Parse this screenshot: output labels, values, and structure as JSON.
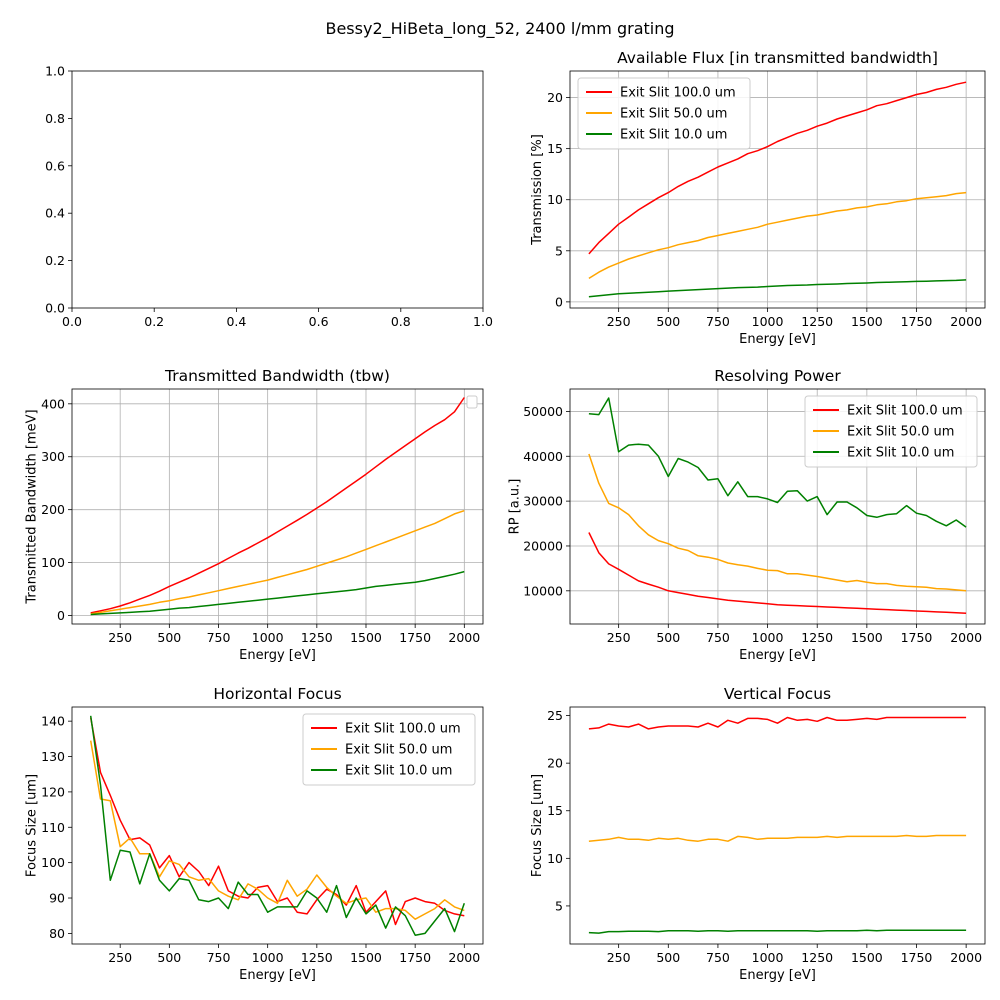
{
  "suptitle": "Bessy2_HiBeta_long_52, 2400 l/mm grating",
  "colors": {
    "red": "#ff0000",
    "orange": "#ffa500",
    "green": "#008000",
    "grid": "#b0b0b0"
  },
  "chart_data": [
    {
      "id": "empty",
      "type": "line",
      "title": "",
      "xlabel": "",
      "ylabel": "",
      "xlim": [
        0,
        1
      ],
      "ylim": [
        0,
        1
      ],
      "xticks": [
        0.0,
        0.2,
        0.4,
        0.6,
        0.8,
        1.0
      ],
      "xtick_labels": [
        "0.0",
        "0.2",
        "0.4",
        "0.6",
        "0.8",
        "1.0"
      ],
      "yticks": [
        0.0,
        0.2,
        0.4,
        0.6,
        0.8,
        1.0
      ],
      "ytick_labels": [
        "0.0",
        "0.2",
        "0.4",
        "0.6",
        "0.8",
        "1.0"
      ],
      "grid": false,
      "legend": null,
      "x": [],
      "series": []
    },
    {
      "id": "flux",
      "type": "line",
      "title": "Available Flux [in transmitted bandwidth]",
      "xlabel": "Energy [eV]",
      "ylabel": "Transmission [%]",
      "xlim": [
        5,
        2095
      ],
      "ylim": [
        -0.6,
        22.6
      ],
      "xticks": [
        250,
        500,
        750,
        1000,
        1250,
        1500,
        1750,
        2000
      ],
      "xtick_labels": [
        "250",
        "500",
        "750",
        "1000",
        "1250",
        "1500",
        "1750",
        "2000"
      ],
      "yticks": [
        0,
        5,
        10,
        15,
        20
      ],
      "ytick_labels": [
        "0",
        "5",
        "10",
        "15",
        "20"
      ],
      "grid": true,
      "legend": "upper-left",
      "x": [
        100,
        150,
        200,
        250,
        300,
        350,
        400,
        450,
        500,
        550,
        600,
        650,
        700,
        750,
        800,
        850,
        900,
        950,
        1000,
        1050,
        1100,
        1150,
        1200,
        1250,
        1300,
        1350,
        1400,
        1450,
        1500,
        1550,
        1600,
        1650,
        1700,
        1750,
        1800,
        1850,
        1900,
        1950,
        2000
      ],
      "series": [
        {
          "name": "Exit Slit 100.0 um",
          "color": "#ff0000",
          "values": [
            4.7,
            5.8,
            6.7,
            7.6,
            8.3,
            9.0,
            9.6,
            10.2,
            10.7,
            11.3,
            11.8,
            12.2,
            12.7,
            13.2,
            13.6,
            14.0,
            14.5,
            14.8,
            15.2,
            15.7,
            16.1,
            16.5,
            16.8,
            17.2,
            17.5,
            17.9,
            18.2,
            18.5,
            18.8,
            19.2,
            19.4,
            19.7,
            20.0,
            20.3,
            20.5,
            20.8,
            21.0,
            21.3,
            21.5
          ]
        },
        {
          "name": "Exit Slit 50.0 um",
          "color": "#ffa500",
          "values": [
            2.3,
            2.9,
            3.4,
            3.8,
            4.2,
            4.5,
            4.8,
            5.1,
            5.3,
            5.6,
            5.8,
            6.0,
            6.3,
            6.5,
            6.7,
            6.9,
            7.1,
            7.3,
            7.6,
            7.8,
            8.0,
            8.2,
            8.4,
            8.5,
            8.7,
            8.9,
            9.0,
            9.2,
            9.3,
            9.5,
            9.6,
            9.8,
            9.9,
            10.1,
            10.2,
            10.3,
            10.4,
            10.6,
            10.7
          ]
        },
        {
          "name": "Exit Slit 10.0 um",
          "color": "#008000",
          "values": [
            0.5,
            0.6,
            0.7,
            0.8,
            0.85,
            0.9,
            0.95,
            1.0,
            1.05,
            1.1,
            1.15,
            1.2,
            1.25,
            1.3,
            1.35,
            1.4,
            1.42,
            1.45,
            1.5,
            1.55,
            1.6,
            1.63,
            1.65,
            1.7,
            1.72,
            1.75,
            1.8,
            1.82,
            1.85,
            1.9,
            1.92,
            1.95,
            1.97,
            2.0,
            2.02,
            2.05,
            2.08,
            2.1,
            2.15
          ]
        }
      ]
    },
    {
      "id": "tbw",
      "type": "line",
      "title": "Transmitted Bandwidth (tbw)",
      "xlabel": "Energy [eV]",
      "ylabel": "Transmitted Bandwidth [meV]",
      "xlim": [
        5,
        2095
      ],
      "ylim": [
        -16,
        428
      ],
      "xticks": [
        250,
        500,
        750,
        1000,
        1250,
        1500,
        1750,
        2000
      ],
      "xtick_labels": [
        "250",
        "500",
        "750",
        "1000",
        "1250",
        "1500",
        "1750",
        "2000"
      ],
      "yticks": [
        0,
        100,
        200,
        300,
        400
      ],
      "ytick_labels": [
        "0",
        "100",
        "200",
        "300",
        "400"
      ],
      "grid": true,
      "legend": "upper-right-empty",
      "x": [
        100,
        150,
        200,
        250,
        300,
        350,
        400,
        450,
        500,
        550,
        600,
        650,
        700,
        750,
        800,
        850,
        900,
        950,
        1000,
        1050,
        1100,
        1150,
        1200,
        1250,
        1300,
        1350,
        1400,
        1450,
        1500,
        1550,
        1600,
        1650,
        1700,
        1750,
        1800,
        1850,
        1900,
        1950,
        2000
      ],
      "series": [
        {
          "name": "",
          "color": "#ff0000",
          "values": [
            5,
            9,
            13,
            18,
            24,
            31,
            38,
            46,
            55,
            63,
            71,
            80,
            89,
            98,
            108,
            118,
            127,
            137,
            147,
            158,
            169,
            180,
            191,
            203,
            215,
            228,
            241,
            254,
            267,
            281,
            295,
            308,
            321,
            334,
            347,
            359,
            370,
            385,
            412
          ]
        },
        {
          "name": "",
          "color": "#ffa500",
          "values": [
            3,
            6,
            9,
            12,
            15,
            18,
            21,
            25,
            28,
            32,
            35,
            39,
            43,
            47,
            51,
            55,
            59,
            63,
            67,
            72,
            77,
            82,
            87,
            93,
            99,
            105,
            111,
            118,
            125,
            132,
            139,
            146,
            153,
            160,
            167,
            174,
            183,
            192,
            198
          ]
        },
        {
          "name": "",
          "color": "#008000",
          "values": [
            2,
            3,
            4,
            5,
            6,
            7,
            8,
            10,
            12,
            14,
            15,
            17,
            19,
            21,
            23,
            25,
            27,
            29,
            31,
            33,
            35,
            37,
            39,
            41,
            43,
            45,
            47,
            49,
            52,
            55,
            57,
            59,
            61,
            63,
            66,
            70,
            74,
            78,
            83
          ]
        }
      ]
    },
    {
      "id": "rp",
      "type": "line",
      "title": "Resolving Power",
      "xlabel": "Energy [eV]",
      "ylabel": "RP [a.u.]",
      "xlim": [
        5,
        2095
      ],
      "ylim": [
        2600,
        55000
      ],
      "xticks": [
        250,
        500,
        750,
        1000,
        1250,
        1500,
        1750,
        2000
      ],
      "xtick_labels": [
        "250",
        "500",
        "750",
        "1000",
        "1250",
        "1500",
        "1750",
        "2000"
      ],
      "yticks": [
        10000,
        20000,
        30000,
        40000,
        50000
      ],
      "ytick_labels": [
        "10000",
        "20000",
        "30000",
        "40000",
        "50000"
      ],
      "grid": true,
      "legend": "upper-right",
      "x": [
        100,
        150,
        200,
        250,
        300,
        350,
        400,
        450,
        500,
        550,
        600,
        650,
        700,
        750,
        800,
        850,
        900,
        950,
        1000,
        1050,
        1100,
        1150,
        1200,
        1250,
        1300,
        1350,
        1400,
        1450,
        1500,
        1550,
        1600,
        1650,
        1700,
        1750,
        1800,
        1850,
        1900,
        1950,
        2000
      ],
      "series": [
        {
          "name": "Exit Slit 100.0 um",
          "color": "#ff0000",
          "values": [
            23000,
            18500,
            16000,
            14800,
            13500,
            12200,
            11500,
            10800,
            10000,
            9600,
            9200,
            8800,
            8500,
            8200,
            7900,
            7700,
            7500,
            7300,
            7100,
            6900,
            6800,
            6700,
            6600,
            6500,
            6400,
            6300,
            6200,
            6100,
            6000,
            5900,
            5800,
            5700,
            5600,
            5500,
            5400,
            5300,
            5200,
            5100,
            5000
          ]
        },
        {
          "name": "Exit Slit 50.0 um",
          "color": "#ffa500",
          "values": [
            40500,
            34000,
            29500,
            28500,
            27000,
            24500,
            22500,
            21200,
            20500,
            19500,
            19000,
            17800,
            17500,
            17000,
            16200,
            15800,
            15500,
            15000,
            14600,
            14500,
            13800,
            13800,
            13500,
            13200,
            12800,
            12400,
            12000,
            12300,
            11900,
            11600,
            11600,
            11200,
            11000,
            10900,
            10800,
            10500,
            10400,
            10200,
            10000
          ]
        },
        {
          "name": "Exit Slit 10.0 um",
          "color": "#008000",
          "values": [
            49500,
            49300,
            53000,
            41000,
            42500,
            42700,
            42500,
            40000,
            35500,
            39500,
            38700,
            37500,
            34700,
            35000,
            31200,
            34300,
            31000,
            31000,
            30500,
            29700,
            32200,
            32300,
            30000,
            31000,
            27000,
            29800,
            29800,
            28500,
            26800,
            26400,
            27000,
            27200,
            29000,
            27300,
            26800,
            25500,
            24500,
            25800,
            24200
          ]
        }
      ]
    },
    {
      "id": "hfocus",
      "type": "line",
      "title": "Horizontal Focus",
      "xlabel": "Energy [eV]",
      "ylabel": "Focus Size [um]",
      "xlim": [
        5,
        2095
      ],
      "ylim": [
        77,
        144
      ],
      "xticks": [
        250,
        500,
        750,
        1000,
        1250,
        1500,
        1750,
        2000
      ],
      "xtick_labels": [
        "250",
        "500",
        "750",
        "1000",
        "1250",
        "1500",
        "1750",
        "2000"
      ],
      "yticks": [
        80,
        90,
        100,
        110,
        120,
        130,
        140
      ],
      "ytick_labels": [
        "80",
        "90",
        "100",
        "110",
        "120",
        "130",
        "140"
      ],
      "grid": false,
      "legend": "upper-right",
      "x": [
        100,
        150,
        200,
        250,
        300,
        350,
        400,
        450,
        500,
        550,
        600,
        650,
        700,
        750,
        800,
        850,
        900,
        950,
        1000,
        1050,
        1100,
        1150,
        1200,
        1250,
        1300,
        1350,
        1400,
        1450,
        1500,
        1550,
        1600,
        1650,
        1700,
        1750,
        1800,
        1850,
        1900,
        1950,
        2000
      ],
      "series": [
        {
          "name": "Exit Slit 100.0 um",
          "color": "#ff0000",
          "values": [
            141,
            125.5,
            119,
            112,
            106.5,
            107,
            105,
            98.5,
            102,
            96,
            100,
            97.5,
            93.5,
            99,
            92,
            90.5,
            90,
            93,
            93.5,
            89,
            90,
            86,
            85.5,
            89.5,
            92.5,
            91,
            88,
            93.5,
            86,
            89,
            92,
            82.5,
            89,
            90,
            89,
            88.5,
            86.5,
            85.5,
            85
          ]
        },
        {
          "name": "Exit Slit 50.0 um",
          "color": "#ffa500",
          "values": [
            134.5,
            118,
            117.5,
            104.5,
            107,
            102.5,
            102.5,
            96,
            100.5,
            99.5,
            96,
            95,
            95.5,
            92,
            90.5,
            89.5,
            94,
            92.5,
            90,
            88.5,
            95,
            90.5,
            92.5,
            96.5,
            93,
            90.5,
            88.5,
            89.5,
            90,
            86,
            87,
            87,
            86.5,
            84,
            85.5,
            87,
            89.5,
            87.5,
            86.5
          ]
        },
        {
          "name": "Exit Slit 10.0 um",
          "color": "#008000",
          "values": [
            141.5,
            122,
            95,
            103.5,
            103,
            94,
            102.5,
            95,
            92,
            95.5,
            95,
            89.5,
            89,
            90,
            87,
            94.5,
            91,
            91,
            86,
            87.5,
            87.5,
            87.5,
            92,
            90,
            86,
            93.5,
            84.5,
            90,
            85.5,
            88,
            81.5,
            87.5,
            85,
            79.5,
            80,
            83.5,
            87,
            80.5,
            88.5
          ]
        }
      ]
    },
    {
      "id": "vfocus",
      "type": "line",
      "title": "Vertical Focus",
      "xlabel": "Energy [eV]",
      "ylabel": "Focus Size [um]",
      "xlim": [
        5,
        2095
      ],
      "ylim": [
        1.0,
        25.9
      ],
      "xticks": [
        250,
        500,
        750,
        1000,
        1250,
        1500,
        1750,
        2000
      ],
      "xtick_labels": [
        "250",
        "500",
        "750",
        "1000",
        "1250",
        "1500",
        "1750",
        "2000"
      ],
      "yticks": [
        5,
        10,
        15,
        20,
        25
      ],
      "ytick_labels": [
        "5",
        "10",
        "15",
        "20",
        "25"
      ],
      "grid": false,
      "legend": null,
      "x": [
        100,
        150,
        200,
        250,
        300,
        350,
        400,
        450,
        500,
        550,
        600,
        650,
        700,
        750,
        800,
        850,
        900,
        950,
        1000,
        1050,
        1100,
        1150,
        1200,
        1250,
        1300,
        1350,
        1400,
        1450,
        1500,
        1550,
        1600,
        1650,
        1700,
        1750,
        1800,
        1850,
        1900,
        1950,
        2000
      ],
      "series": [
        {
          "name": "",
          "color": "#ff0000",
          "values": [
            23.6,
            23.7,
            24.1,
            23.9,
            23.8,
            24.1,
            23.6,
            23.8,
            23.9,
            23.9,
            23.9,
            23.8,
            24.2,
            23.8,
            24.5,
            24.2,
            24.7,
            24.7,
            24.6,
            24.2,
            24.8,
            24.5,
            24.6,
            24.4,
            24.8,
            24.5,
            24.5,
            24.6,
            24.7,
            24.6,
            24.8,
            24.8,
            24.8,
            24.8,
            24.8,
            24.8,
            24.8,
            24.8,
            24.8
          ]
        },
        {
          "name": "",
          "color": "#ffa500",
          "values": [
            11.8,
            11.9,
            12.0,
            12.2,
            12.0,
            12.0,
            11.9,
            12.1,
            12.0,
            12.1,
            11.9,
            11.8,
            12.0,
            12.0,
            11.8,
            12.3,
            12.2,
            12.0,
            12.1,
            12.1,
            12.1,
            12.2,
            12.2,
            12.2,
            12.3,
            12.2,
            12.3,
            12.3,
            12.3,
            12.3,
            12.3,
            12.3,
            12.4,
            12.3,
            12.3,
            12.4,
            12.4,
            12.4,
            12.4
          ]
        },
        {
          "name": "",
          "color": "#008000",
          "values": [
            2.2,
            2.15,
            2.3,
            2.3,
            2.35,
            2.35,
            2.35,
            2.3,
            2.4,
            2.4,
            2.4,
            2.35,
            2.4,
            2.4,
            2.35,
            2.4,
            2.4,
            2.4,
            2.4,
            2.4,
            2.4,
            2.4,
            2.4,
            2.35,
            2.4,
            2.4,
            2.4,
            2.4,
            2.45,
            2.4,
            2.45,
            2.45,
            2.45,
            2.45,
            2.45,
            2.45,
            2.45,
            2.45,
            2.45
          ]
        }
      ]
    }
  ]
}
